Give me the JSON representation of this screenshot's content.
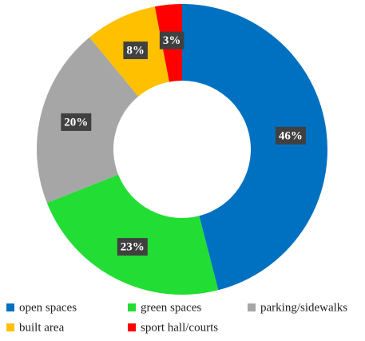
{
  "chart_data": {
    "type": "donut",
    "categories": [
      "open spaces",
      "green spaces",
      "parking/sidewalks",
      "built area",
      "sport hall/courts"
    ],
    "values": [
      46,
      23,
      20,
      8,
      3
    ],
    "value_labels": [
      "46%",
      "23%",
      "20%",
      "8%",
      "3%"
    ],
    "colors": [
      "#0070c0",
      "#22dd33",
      "#a6a6a6",
      "#ffc000",
      "#ff0000"
    ],
    "legend": "bottom"
  }
}
